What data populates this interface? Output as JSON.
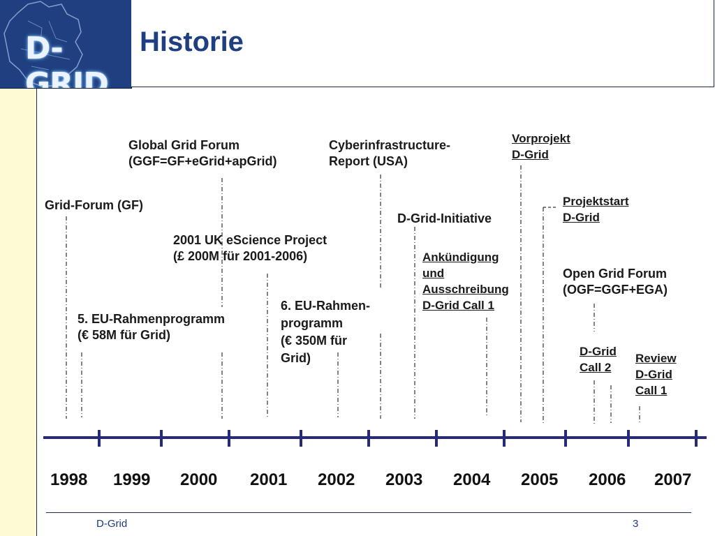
{
  "slide": {
    "title": "Historie",
    "logo_text": "D-GRID",
    "footer_left": "D-Grid",
    "page_number": "3"
  },
  "timeline": {
    "years": [
      "1998",
      "1999",
      "2000",
      "2001",
      "2002",
      "2003",
      "2004",
      "2005",
      "2006",
      "2007"
    ],
    "events": [
      {
        "id": "gf",
        "lines": [
          "Grid-Forum (GF)"
        ],
        "underline": false
      },
      {
        "id": "eu5",
        "lines": [
          "5. EU-Rahmenprogramm",
          "(€ 58M für Grid)"
        ],
        "underline": false
      },
      {
        "id": "ggf",
        "lines": [
          "Global Grid Forum",
          "(GGF=GF+eGrid+apGrid)"
        ],
        "underline": false
      },
      {
        "id": "uk",
        "lines": [
          "2001 UK eScience Project",
          "(£ 200M für 2001-2006)"
        ],
        "underline": false
      },
      {
        "id": "eu6",
        "lines": [
          "6. EU-Rahmen-",
          "programm",
          "(€ 350M für",
          "Grid)"
        ],
        "underline": false
      },
      {
        "id": "cyber",
        "lines": [
          "Cyberinfrastructure-",
          "Report (USA)"
        ],
        "underline": false
      },
      {
        "id": "dgi",
        "lines": [
          "D-Grid-Initiative"
        ],
        "underline": false
      },
      {
        "id": "ank",
        "lines": [
          "Ankündigung",
          "und",
          "Ausschreibung",
          "D-Grid Call 1"
        ],
        "underline": true
      },
      {
        "id": "vor",
        "lines": [
          "Vorprojekt",
          "D-Grid"
        ],
        "underline": true
      },
      {
        "id": "pstart",
        "lines": [
          "Projektstart",
          "D-Grid"
        ],
        "underline": true
      },
      {
        "id": "ogf",
        "lines": [
          "Open Grid Forum",
          "(OGF=GGF+EGA)"
        ],
        "underline": false
      },
      {
        "id": "call2",
        "lines": [
          "D-Grid",
          " Call 2"
        ],
        "underline": true
      },
      {
        "id": "review",
        "lines": [
          "Review",
          "D-Grid",
          " Call 1"
        ],
        "underline": true
      }
    ]
  },
  "colors": {
    "accent": "#1f3f80",
    "axis": "#252a7a",
    "sidebar": "#fdfbd4"
  }
}
